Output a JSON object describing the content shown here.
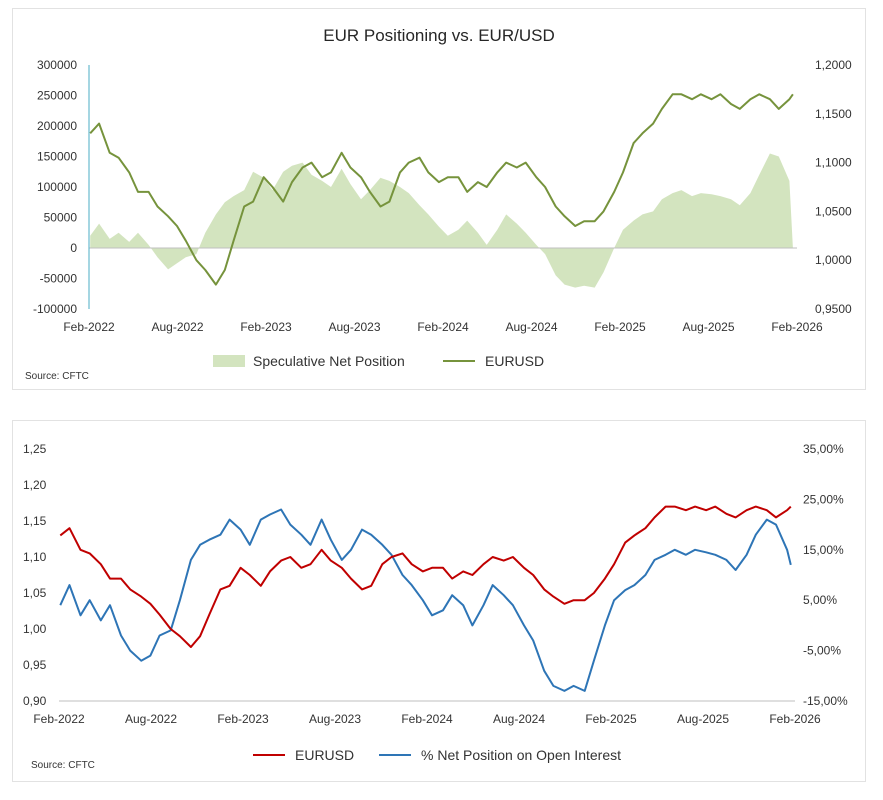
{
  "chart_data": [
    {
      "type": "area+line",
      "title": "EUR Positioning vs. EUR/USD",
      "source": "Source: CFTC",
      "x_tick_labels": [
        "Feb-2022",
        "Aug-2022",
        "Feb-2023",
        "Aug-2023",
        "Feb-2024",
        "Aug-2024",
        "Feb-2025",
        "Aug-2025",
        "Feb-2026"
      ],
      "x_range": [
        2022.083,
        2026.083
      ],
      "y_left": {
        "ticks": [
          300000,
          250000,
          200000,
          150000,
          100000,
          50000,
          0,
          -50000,
          -100000
        ],
        "tick_labels": [
          "300000",
          "250000",
          "200000",
          "150000",
          "100000",
          "50000",
          "0",
          "-50000",
          "-100000"
        ],
        "range": [
          -100000,
          300000
        ]
      },
      "y_right": {
        "ticks": [
          1.2,
          1.15,
          1.1,
          1.05,
          1.0,
          0.95
        ],
        "tick_labels": [
          "1,2000",
          "1,1500",
          "1,1000",
          "1,0500",
          "1,0000",
          "0,9500"
        ],
        "range": [
          0.95,
          1.2
        ]
      },
      "legend": [
        "Speculative Net Position",
        "EURUSD"
      ],
      "series": [
        {
          "name": "Speculative Net Position",
          "axis": "left",
          "color": "#d3e4bf",
          "x": [
            2022.09,
            2022.14,
            2022.2,
            2022.25,
            2022.31,
            2022.36,
            2022.42,
            2022.47,
            2022.53,
            2022.58,
            2022.63,
            2022.69,
            2022.74,
            2022.8,
            2022.85,
            2022.9,
            2022.96,
            2023.01,
            2023.07,
            2023.12,
            2023.18,
            2023.23,
            2023.29,
            2023.34,
            2023.4,
            2023.45,
            2023.51,
            2023.56,
            2023.62,
            2023.67,
            2023.73,
            2023.78,
            2023.84,
            2023.89,
            2023.95,
            2024.0,
            2024.06,
            2024.11,
            2024.17,
            2024.22,
            2024.28,
            2024.33,
            2024.39,
            2024.44,
            2024.5,
            2024.55,
            2024.61,
            2024.66,
            2024.72,
            2024.77,
            2024.83,
            2024.88,
            2024.94,
            2024.99,
            2025.05,
            2025.1,
            2025.16,
            2025.21,
            2025.27,
            2025.32,
            2025.38,
            2025.43,
            2025.49,
            2025.54,
            2025.6,
            2025.65,
            2025.71,
            2025.76,
            2025.82,
            2025.87,
            2025.93,
            2025.98,
            2026.04,
            2026.06
          ],
          "values": [
            20000,
            40000,
            15000,
            25000,
            10000,
            25000,
            5000,
            -15000,
            -35000,
            -25000,
            -15000,
            -10000,
            25000,
            55000,
            75000,
            85000,
            95000,
            125000,
            115000,
            95000,
            125000,
            135000,
            140000,
            120000,
            110000,
            100000,
            130000,
            105000,
            80000,
            95000,
            115000,
            110000,
            100000,
            90000,
            70000,
            55000,
            35000,
            20000,
            30000,
            45000,
            25000,
            5000,
            30000,
            55000,
            40000,
            25000,
            5000,
            -10000,
            -45000,
            -60000,
            -65000,
            -62000,
            -65000,
            -40000,
            0,
            30000,
            45000,
            55000,
            60000,
            80000,
            90000,
            95000,
            85000,
            90000,
            88000,
            85000,
            80000,
            70000,
            90000,
            120000,
            155000,
            150000,
            110000,
            0
          ]
        },
        {
          "name": "EURUSD",
          "axis": "right",
          "color": "#76933c",
          "x": [
            2022.09,
            2022.14,
            2022.2,
            2022.25,
            2022.31,
            2022.36,
            2022.42,
            2022.47,
            2022.53,
            2022.58,
            2022.63,
            2022.69,
            2022.74,
            2022.8,
            2022.85,
            2022.9,
            2022.96,
            2023.01,
            2023.07,
            2023.12,
            2023.18,
            2023.23,
            2023.29,
            2023.34,
            2023.4,
            2023.45,
            2023.51,
            2023.56,
            2023.62,
            2023.67,
            2023.73,
            2023.78,
            2023.84,
            2023.89,
            2023.95,
            2024.0,
            2024.06,
            2024.11,
            2024.17,
            2024.22,
            2024.28,
            2024.33,
            2024.39,
            2024.44,
            2024.5,
            2024.55,
            2024.61,
            2024.66,
            2024.72,
            2024.77,
            2024.83,
            2024.88,
            2024.94,
            2024.99,
            2025.05,
            2025.1,
            2025.16,
            2025.21,
            2025.27,
            2025.32,
            2025.38,
            2025.43,
            2025.49,
            2025.54,
            2025.6,
            2025.65,
            2025.71,
            2025.76,
            2025.82,
            2025.87,
            2025.93,
            2025.98,
            2026.04,
            2026.06
          ],
          "values": [
            1.13,
            1.14,
            1.11,
            1.105,
            1.09,
            1.07,
            1.07,
            1.055,
            1.045,
            1.035,
            1.02,
            1.0,
            0.99,
            0.975,
            0.99,
            1.02,
            1.055,
            1.06,
            1.085,
            1.075,
            1.06,
            1.08,
            1.095,
            1.1,
            1.085,
            1.09,
            1.11,
            1.095,
            1.085,
            1.07,
            1.055,
            1.06,
            1.09,
            1.1,
            1.105,
            1.09,
            1.08,
            1.085,
            1.085,
            1.07,
            1.08,
            1.075,
            1.09,
            1.1,
            1.095,
            1.1,
            1.085,
            1.075,
            1.055,
            1.045,
            1.035,
            1.04,
            1.04,
            1.05,
            1.07,
            1.09,
            1.12,
            1.13,
            1.14,
            1.155,
            1.17,
            1.17,
            1.165,
            1.17,
            1.165,
            1.17,
            1.16,
            1.155,
            1.165,
            1.17,
            1.165,
            1.155,
            1.165,
            1.17
          ]
        }
      ]
    },
    {
      "type": "line",
      "source": "Source: CFTC",
      "x_tick_labels": [
        "Feb-2022",
        "Aug-2022",
        "Feb-2023",
        "Aug-2023",
        "Feb-2024",
        "Aug-2024",
        "Feb-2025",
        "Aug-2025",
        "Feb-2026"
      ],
      "x_range": [
        2022.083,
        2026.083
      ],
      "y_left": {
        "ticks": [
          1.25,
          1.2,
          1.15,
          1.1,
          1.05,
          1.0,
          0.95,
          0.9
        ],
        "tick_labels": [
          "1,25",
          "1,20",
          "1,15",
          "1,10",
          "1,05",
          "1,00",
          "0,95",
          "0,90"
        ],
        "range": [
          0.9,
          1.25
        ]
      },
      "y_right": {
        "ticks": [
          35,
          25,
          15,
          5,
          -5,
          -15
        ],
        "tick_labels": [
          "35,00%",
          "25,00%",
          "15,00%",
          "5,00%",
          "-5,00%",
          "-15,00%"
        ],
        "range": [
          -15,
          35
        ]
      },
      "legend": [
        "EURUSD",
        "% Net Position on Open Interest"
      ],
      "series": [
        {
          "name": "EURUSD",
          "axis": "left",
          "color": "#c00000",
          "x": [
            2022.09,
            2022.14,
            2022.2,
            2022.25,
            2022.31,
            2022.36,
            2022.42,
            2022.47,
            2022.53,
            2022.58,
            2022.63,
            2022.69,
            2022.74,
            2022.8,
            2022.85,
            2022.9,
            2022.96,
            2023.01,
            2023.07,
            2023.12,
            2023.18,
            2023.23,
            2023.29,
            2023.34,
            2023.4,
            2023.45,
            2023.51,
            2023.56,
            2023.62,
            2023.67,
            2023.73,
            2023.78,
            2023.84,
            2023.89,
            2023.95,
            2024.0,
            2024.06,
            2024.11,
            2024.17,
            2024.22,
            2024.28,
            2024.33,
            2024.39,
            2024.44,
            2024.5,
            2024.55,
            2024.61,
            2024.66,
            2024.72,
            2024.77,
            2024.83,
            2024.88,
            2024.94,
            2024.99,
            2025.05,
            2025.1,
            2025.16,
            2025.21,
            2025.27,
            2025.32,
            2025.38,
            2025.43,
            2025.49,
            2025.54,
            2025.6,
            2025.65,
            2025.71,
            2025.76,
            2025.82,
            2025.87,
            2025.93,
            2025.98,
            2026.04,
            2026.06
          ],
          "values": [
            1.13,
            1.14,
            1.11,
            1.105,
            1.09,
            1.07,
            1.07,
            1.055,
            1.045,
            1.035,
            1.02,
            1.0,
            0.99,
            0.975,
            0.99,
            1.02,
            1.055,
            1.06,
            1.085,
            1.075,
            1.06,
            1.08,
            1.095,
            1.1,
            1.085,
            1.09,
            1.11,
            1.095,
            1.085,
            1.07,
            1.055,
            1.06,
            1.09,
            1.1,
            1.105,
            1.09,
            1.08,
            1.085,
            1.085,
            1.07,
            1.08,
            1.075,
            1.09,
            1.1,
            1.095,
            1.1,
            1.085,
            1.075,
            1.055,
            1.045,
            1.035,
            1.04,
            1.04,
            1.05,
            1.07,
            1.09,
            1.12,
            1.13,
            1.14,
            1.155,
            1.17,
            1.17,
            1.165,
            1.17,
            1.165,
            1.17,
            1.16,
            1.155,
            1.165,
            1.17,
            1.165,
            1.155,
            1.165,
            1.17
          ]
        },
        {
          "name": "% Net Position on Open Interest",
          "axis": "right",
          "color": "#2e75b6",
          "x": [
            2022.09,
            2022.14,
            2022.2,
            2022.25,
            2022.31,
            2022.36,
            2022.42,
            2022.47,
            2022.53,
            2022.58,
            2022.63,
            2022.69,
            2022.74,
            2022.8,
            2022.85,
            2022.9,
            2022.96,
            2023.01,
            2023.07,
            2023.12,
            2023.18,
            2023.23,
            2023.29,
            2023.34,
            2023.4,
            2023.45,
            2023.51,
            2023.56,
            2023.62,
            2023.67,
            2023.73,
            2023.78,
            2023.84,
            2023.89,
            2023.95,
            2024.0,
            2024.06,
            2024.11,
            2024.17,
            2024.22,
            2024.28,
            2024.33,
            2024.39,
            2024.44,
            2024.5,
            2024.55,
            2024.61,
            2024.66,
            2024.72,
            2024.77,
            2024.83,
            2024.88,
            2024.94,
            2024.99,
            2025.05,
            2025.1,
            2025.16,
            2025.21,
            2025.27,
            2025.32,
            2025.38,
            2025.43,
            2025.49,
            2025.54,
            2025.6,
            2025.65,
            2025.71,
            2025.76,
            2025.82,
            2025.87,
            2025.93,
            2025.98,
            2026.04,
            2026.06
          ],
          "values": [
            4,
            8,
            2,
            5,
            1,
            4,
            -2,
            -5,
            -7,
            -6,
            -2,
            -1,
            5,
            13,
            16,
            17,
            18,
            21,
            19,
            16,
            21,
            22,
            23,
            20,
            18,
            16,
            21,
            17,
            13,
            15,
            19,
            18,
            16,
            14,
            10,
            8,
            5,
            2,
            3,
            6,
            4,
            0,
            4,
            8,
            6,
            4,
            0,
            -3,
            -9,
            -12,
            -13,
            -12,
            -13,
            -7,
            0,
            5,
            7,
            8,
            10,
            13,
            14,
            15,
            14,
            15,
            14.5,
            14,
            13,
            11,
            14,
            18,
            21,
            20,
            15,
            12
          ]
        }
      ]
    }
  ]
}
